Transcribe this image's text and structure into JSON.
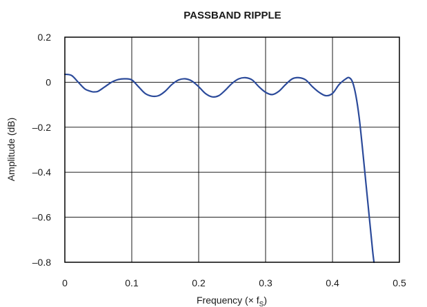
{
  "chart_data": {
    "type": "line",
    "title": "PASSBAND RIPPLE",
    "xlabel": "Frequency (× f",
    "xlabel_sub": "S",
    "xlabel_close": ")",
    "ylabel": "Amplitude (dB)",
    "xlim": [
      0,
      0.5
    ],
    "ylim": [
      -0.8,
      0.2
    ],
    "xticks": [
      "0",
      "0.1",
      "0.2",
      "0.3",
      "0.4",
      "0.5"
    ],
    "yticks": [
      "0.2",
      "0",
      "–0.2",
      "–0.4",
      "–0.6",
      "–0.8"
    ],
    "grid": true,
    "line_color": "#2b4a9a",
    "series": [
      {
        "x": [
          0,
          0.01,
          0.02,
          0.03,
          0.04,
          0.045,
          0.05,
          0.06,
          0.07,
          0.08,
          0.09,
          0.1,
          0.11,
          0.12,
          0.13,
          0.14,
          0.15,
          0.16,
          0.17,
          0.18,
          0.19,
          0.2,
          0.21,
          0.22,
          0.23,
          0.24,
          0.25,
          0.26,
          0.27,
          0.28,
          0.29,
          0.3,
          0.31,
          0.32,
          0.33,
          0.34,
          0.35,
          0.36,
          0.37,
          0.38,
          0.39,
          0.4,
          0.41,
          0.42,
          0.425,
          0.43,
          0.435,
          0.44,
          0.445,
          0.45,
          0.455,
          0.46,
          0.462
        ],
        "y": [
          0.035,
          0.03,
          0.0,
          -0.03,
          -0.042,
          -0.043,
          -0.04,
          -0.02,
          0.0,
          0.012,
          0.015,
          0.01,
          -0.02,
          -0.05,
          -0.062,
          -0.06,
          -0.04,
          -0.01,
          0.01,
          0.015,
          0.005,
          -0.02,
          -0.05,
          -0.065,
          -0.06,
          -0.035,
          -0.005,
          0.015,
          0.02,
          0.01,
          -0.02,
          -0.045,
          -0.055,
          -0.04,
          -0.01,
          0.015,
          0.02,
          0.01,
          -0.02,
          -0.045,
          -0.06,
          -0.05,
          -0.01,
          0.015,
          0.02,
          0.0,
          -0.06,
          -0.16,
          -0.3,
          -0.45,
          -0.6,
          -0.75,
          -0.8
        ]
      }
    ]
  }
}
